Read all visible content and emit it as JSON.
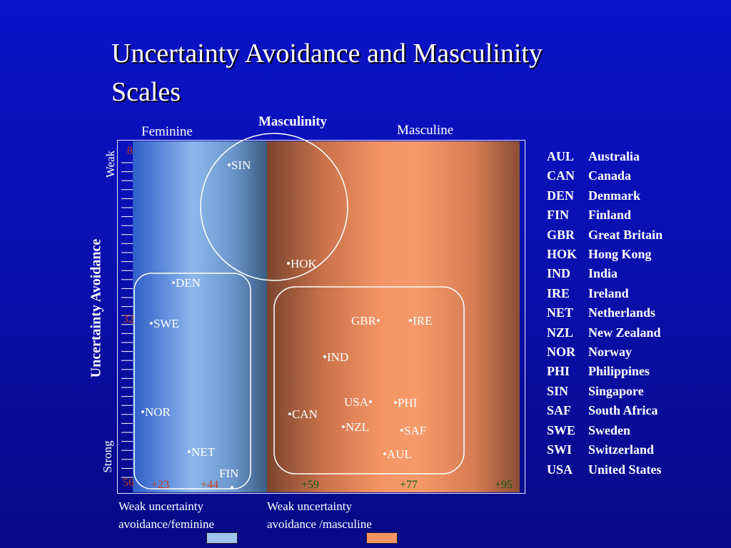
{
  "title": [
    "Uncertainty Avoidance and Masculinity",
    "Scales"
  ],
  "chart_data": {
    "type": "scatter",
    "title": "Masculinity",
    "xlabel_left": "Feminine",
    "xlabel_right": "Masculine",
    "ylabel": "Uncertainty Avoidance",
    "y_end_labels": {
      "top": "Weak",
      "bottom": "Strong"
    },
    "x_tick_labels": [
      "+23",
      "+44",
      "+59",
      "+77",
      "+95"
    ],
    "y_tick_labels": [
      "8",
      "32",
      "56"
    ],
    "points": [
      {
        "label": "•SIN"
      },
      {
        "label": "•HOK"
      },
      {
        "label": "•DEN"
      },
      {
        "label": "•SWE"
      },
      {
        "label": "GBR•"
      },
      {
        "label": "•IRE"
      },
      {
        "label": "•IND"
      },
      {
        "label": "•NOR"
      },
      {
        "label": "USA•"
      },
      {
        "label": "•PHI"
      },
      {
        "label": "•CAN"
      },
      {
        "label": "•NZL"
      },
      {
        "label": "•SAF"
      },
      {
        "label": "•NET"
      },
      {
        "label": "•AUL"
      },
      {
        "label": "FIN"
      }
    ],
    "regions": {
      "feminine_color": "#9ec3ef",
      "masculine_color": "#f49566"
    }
  },
  "legend": [
    {
      "code": "AUL",
      "name": "Australia"
    },
    {
      "code": "CAN",
      "name": "Canada"
    },
    {
      "code": "DEN",
      "name": "Denmark"
    },
    {
      "code": "FIN",
      "name": "Finland"
    },
    {
      "code": "GBR",
      "name": "Great Britain"
    },
    {
      "code": "HOK",
      "name": " Hong Kong"
    },
    {
      "code": "IND",
      "name": "India"
    },
    {
      "code": "IRE",
      "name": "Ireland"
    },
    {
      "code": "NET",
      "name": "Netherlands"
    },
    {
      "code": "NZL",
      "name": "New Zealand"
    },
    {
      "code": "NOR",
      "name": "Norway"
    },
    {
      "code": "PHI",
      "name": "Philippines"
    },
    {
      "code": "SIN",
      "name": "Singapore"
    },
    {
      "code": "SAF",
      "name": "South Africa"
    },
    {
      "code": "SWE",
      "name": "Sweden"
    },
    {
      "code": "SWI",
      "name": "Switzerland"
    },
    {
      "code": "USA",
      "name": "United States"
    }
  ],
  "captions": {
    "left": [
      "Weak uncertainty",
      "avoidance/feminine"
    ],
    "right": [
      "Weak uncertainty",
      "avoidance /masculine"
    ]
  },
  "colors": {
    "background": "#0a10b0",
    "tick_value": "#c23a1c",
    "x_tick_feminine": "#c23a1c",
    "x_tick_masculine": "#0e5a12"
  }
}
